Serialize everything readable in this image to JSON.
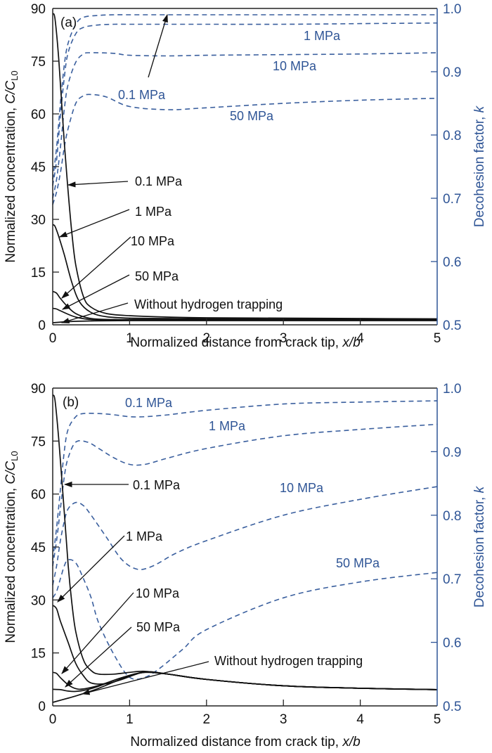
{
  "colors": {
    "solid": "#111111",
    "dashed": "#3a5f9e",
    "right_axis": "#2f5596"
  },
  "chart_data": [
    {
      "type": "line",
      "panel_label": "(a)",
      "xlabel": "Normalized distance from crack tip, ",
      "xlabel_italic": "x/b",
      "ylabel_left": "Normalized concentration, ",
      "ylabel_left_italic": "C/C",
      "ylabel_left_sub": "L0",
      "ylabel_right": "Decohesion factor, ",
      "ylabel_right_italic": "k",
      "xlim": [
        0,
        5
      ],
      "ylim_left": [
        0,
        90
      ],
      "ylim_right": [
        0.5,
        1.0
      ],
      "xticks": [
        "0",
        "1",
        "2",
        "3",
        "4",
        "5"
      ],
      "yticks_left": [
        "0",
        "15",
        "30",
        "45",
        "60",
        "75",
        "90"
      ],
      "yticks_right": [
        "0.5",
        "0.6",
        "0.7",
        "0.8",
        "0.9",
        "1.0"
      ],
      "concentration_series": [
        {
          "name": "0.1 MPa",
          "x": [
            0,
            0.03,
            0.08,
            0.15,
            0.2,
            0.25,
            0.3,
            0.4,
            0.5,
            0.7,
            1.0,
            1.5,
            2,
            3,
            4,
            5
          ],
          "y": [
            88.5,
            87,
            75,
            52,
            38,
            26,
            17,
            8,
            5,
            3.2,
            2.6,
            2.2,
            2.0,
            1.9,
            1.8,
            1.7
          ]
        },
        {
          "name": "1 MPa",
          "x": [
            0,
            0.03,
            0.08,
            0.15,
            0.25,
            0.35,
            0.5,
            0.7,
            1.0,
            1.5,
            2,
            3,
            4,
            5
          ],
          "y": [
            28.5,
            28,
            25,
            20,
            12,
            6.5,
            3.5,
            2.3,
            1.9,
            1.8,
            1.7,
            1.6,
            1.6,
            1.5
          ]
        },
        {
          "name": "10 MPa",
          "x": [
            0,
            0.05,
            0.1,
            0.2,
            0.3,
            0.45,
            0.6,
            0.8,
            1.0,
            2,
            3,
            4,
            5
          ],
          "y": [
            9.5,
            9,
            7.5,
            5,
            3.2,
            2,
            1.6,
            1.5,
            1.5,
            1.5,
            1.4,
            1.4,
            1.4
          ]
        },
        {
          "name": "50 MPa",
          "x": [
            0,
            0.05,
            0.1,
            0.2,
            0.3,
            0.45,
            0.6,
            1.0,
            2,
            3,
            4,
            5
          ],
          "y": [
            4.7,
            4.5,
            4,
            3,
            2.2,
            1.6,
            1.4,
            1.3,
            1.3,
            1.3,
            1.3,
            1.3
          ]
        },
        {
          "name": "Without hydrogen trapping",
          "x": [
            0,
            0.2,
            0.5,
            1.0,
            2,
            3,
            4,
            5
          ],
          "y": [
            0.6,
            0.9,
            1.1,
            1.2,
            1.2,
            1.2,
            1.2,
            1.2
          ]
        }
      ],
      "decohesion_series": [
        {
          "name": "0.1 MPa",
          "x": [
            0,
            0.05,
            0.1,
            0.15,
            0.2,
            0.3,
            0.4,
            0.6,
            0.8,
            1.0,
            2,
            3,
            4,
            5
          ],
          "k": [
            0.73,
            0.78,
            0.85,
            0.91,
            0.945,
            0.975,
            0.986,
            0.989,
            0.99,
            0.99,
            0.99,
            0.99,
            0.99,
            0.99
          ]
        },
        {
          "name": "1 MPa",
          "x": [
            0,
            0.05,
            0.1,
            0.15,
            0.2,
            0.3,
            0.4,
            0.6,
            0.8,
            1.0,
            2,
            3,
            4,
            5
          ],
          "k": [
            0.72,
            0.76,
            0.83,
            0.89,
            0.93,
            0.96,
            0.97,
            0.974,
            0.975,
            0.975,
            0.975,
            0.975,
            0.976,
            0.977
          ]
        },
        {
          "name": "10 MPa",
          "x": [
            0,
            0.05,
            0.1,
            0.15,
            0.2,
            0.3,
            0.4,
            0.5,
            0.8,
            1.0,
            1.5,
            2,
            3,
            4,
            5
          ],
          "k": [
            0.7,
            0.73,
            0.78,
            0.84,
            0.88,
            0.915,
            0.928,
            0.93,
            0.929,
            0.926,
            0.925,
            0.926,
            0.927,
            0.928,
            0.93
          ]
        },
        {
          "name": "50 MPa",
          "x": [
            0,
            0.05,
            0.1,
            0.15,
            0.2,
            0.3,
            0.4,
            0.5,
            0.7,
            1.0,
            1.5,
            2,
            3,
            4,
            5
          ],
          "k": [
            0.69,
            0.71,
            0.74,
            0.78,
            0.81,
            0.85,
            0.862,
            0.864,
            0.86,
            0.845,
            0.84,
            0.843,
            0.85,
            0.855,
            0.858
          ]
        }
      ],
      "annotations_black": [
        "0.1 MPa",
        "1 MPa",
        "10 MPa",
        "50 MPa",
        "Without hydrogen trapping"
      ],
      "annotations_blue": [
        "0.1 MPa",
        "1 MPa",
        "10 MPa",
        "50 MPa"
      ]
    },
    {
      "type": "line",
      "panel_label": "(b)",
      "xlabel": "Normalized distance from crack tip, ",
      "xlabel_italic": "x/b",
      "ylabel_left": "Normalized concentration, ",
      "ylabel_left_italic": "C/C",
      "ylabel_left_sub": "L0",
      "ylabel_right": "Decohesion factor, ",
      "ylabel_right_italic": "k",
      "xlim": [
        0,
        5
      ],
      "ylim_left": [
        0,
        90
      ],
      "ylim_right": [
        0.5,
        1.0
      ],
      "xticks": [
        "0",
        "1",
        "2",
        "3",
        "4",
        "5"
      ],
      "yticks_left": [
        "0",
        "15",
        "30",
        "45",
        "60",
        "75",
        "90"
      ],
      "yticks_right": [
        "0.5",
        "0.6",
        "0.7",
        "0.8",
        "0.9",
        "1.0"
      ],
      "concentration_series": [
        {
          "name": "0.1 MPa",
          "x": [
            0,
            0.03,
            0.08,
            0.15,
            0.2,
            0.25,
            0.3,
            0.4,
            0.5,
            0.6,
            0.8,
            1.0,
            1.2,
            1.5,
            2,
            3,
            4,
            5
          ],
          "y": [
            88,
            86.5,
            75,
            55,
            40,
            29,
            21,
            13,
            10,
            9,
            9,
            9.5,
            9.8,
            9,
            7.5,
            5.7,
            5,
            4.6
          ]
        },
        {
          "name": "1 MPa",
          "x": [
            0,
            0.05,
            0.1,
            0.2,
            0.3,
            0.4,
            0.5,
            0.7,
            0.9,
            1.2,
            1.5,
            2,
            3,
            4,
            5
          ],
          "y": [
            28.5,
            27.5,
            24,
            18,
            12,
            8.5,
            6.5,
            6.3,
            7.5,
            9.6,
            9,
            7.5,
            5.7,
            5,
            4.6
          ]
        },
        {
          "name": "10 MPa",
          "x": [
            0,
            0.05,
            0.1,
            0.2,
            0.3,
            0.4,
            0.6,
            0.9,
            1.2,
            1.5,
            2,
            3,
            4,
            5
          ],
          "y": [
            9.5,
            9.2,
            8,
            6,
            4.9,
            4.8,
            5.8,
            8,
            9.6,
            9,
            7.5,
            5.7,
            5,
            4.6
          ]
        },
        {
          "name": "50 MPa",
          "x": [
            0,
            0.1,
            0.2,
            0.3,
            0.45,
            0.6,
            0.9,
            1.2,
            1.5,
            2,
            3,
            4,
            5
          ],
          "y": [
            4.7,
            4.6,
            4.2,
            4.1,
            4.6,
            5.6,
            8,
            9.5,
            9,
            7.5,
            5.7,
            5,
            4.6
          ]
        },
        {
          "name": "Without hydrogen trapping",
          "x": [
            0,
            0.2,
            0.4,
            0.6,
            0.8,
            1.0,
            1.2,
            1.5,
            2,
            3,
            4,
            5
          ],
          "y": [
            1,
            2.2,
            3.5,
            5,
            6.8,
            8.5,
            9.5,
            9,
            7.5,
            5.7,
            5,
            4.6
          ]
        }
      ],
      "decohesion_series": [
        {
          "name": "0.1 MPa",
          "x": [
            0,
            0.05,
            0.1,
            0.15,
            0.2,
            0.3,
            0.4,
            0.6,
            0.8,
            1.0,
            1.2,
            1.5,
            2,
            3,
            4,
            5
          ],
          "k": [
            0.73,
            0.78,
            0.84,
            0.9,
            0.935,
            0.955,
            0.96,
            0.96,
            0.958,
            0.955,
            0.955,
            0.958,
            0.965,
            0.975,
            0.978,
            0.98
          ]
        },
        {
          "name": "1 MPa",
          "x": [
            0,
            0.05,
            0.1,
            0.15,
            0.2,
            0.3,
            0.45,
            0.6,
            0.8,
            1.0,
            1.2,
            1.5,
            2,
            3,
            4,
            5
          ],
          "k": [
            0.72,
            0.76,
            0.81,
            0.86,
            0.89,
            0.915,
            0.915,
            0.905,
            0.89,
            0.88,
            0.88,
            0.89,
            0.905,
            0.925,
            0.935,
            0.943
          ]
        },
        {
          "name": "10 MPa",
          "x": [
            0,
            0.05,
            0.1,
            0.15,
            0.2,
            0.3,
            0.4,
            0.5,
            0.7,
            0.9,
            1.1,
            1.3,
            1.6,
            2,
            3,
            4,
            5
          ],
          "k": [
            0.69,
            0.72,
            0.76,
            0.79,
            0.81,
            0.82,
            0.815,
            0.8,
            0.765,
            0.73,
            0.715,
            0.72,
            0.74,
            0.76,
            0.8,
            0.825,
            0.845
          ]
        },
        {
          "name": "50 MPa",
          "x": [
            0,
            0.05,
            0.1,
            0.15,
            0.2,
            0.3,
            0.4,
            0.5,
            0.6,
            0.8,
            1.0,
            1.2,
            1.4,
            1.7,
            2,
            3,
            4,
            5
          ],
          "k": [
            0.67,
            0.68,
            0.7,
            0.72,
            0.73,
            0.725,
            0.7,
            0.67,
            0.63,
            0.58,
            0.545,
            0.545,
            0.56,
            0.59,
            0.62,
            0.67,
            0.695,
            0.71
          ]
        }
      ],
      "annotations_black": [
        "0.1 MPa",
        "1 MPa",
        "10 MPa",
        "50 MPa",
        "Without hydrogen trapping"
      ],
      "annotations_blue": [
        "0.1 MPa",
        "1 MPa",
        "10 MPa",
        "50 MPa"
      ]
    }
  ]
}
